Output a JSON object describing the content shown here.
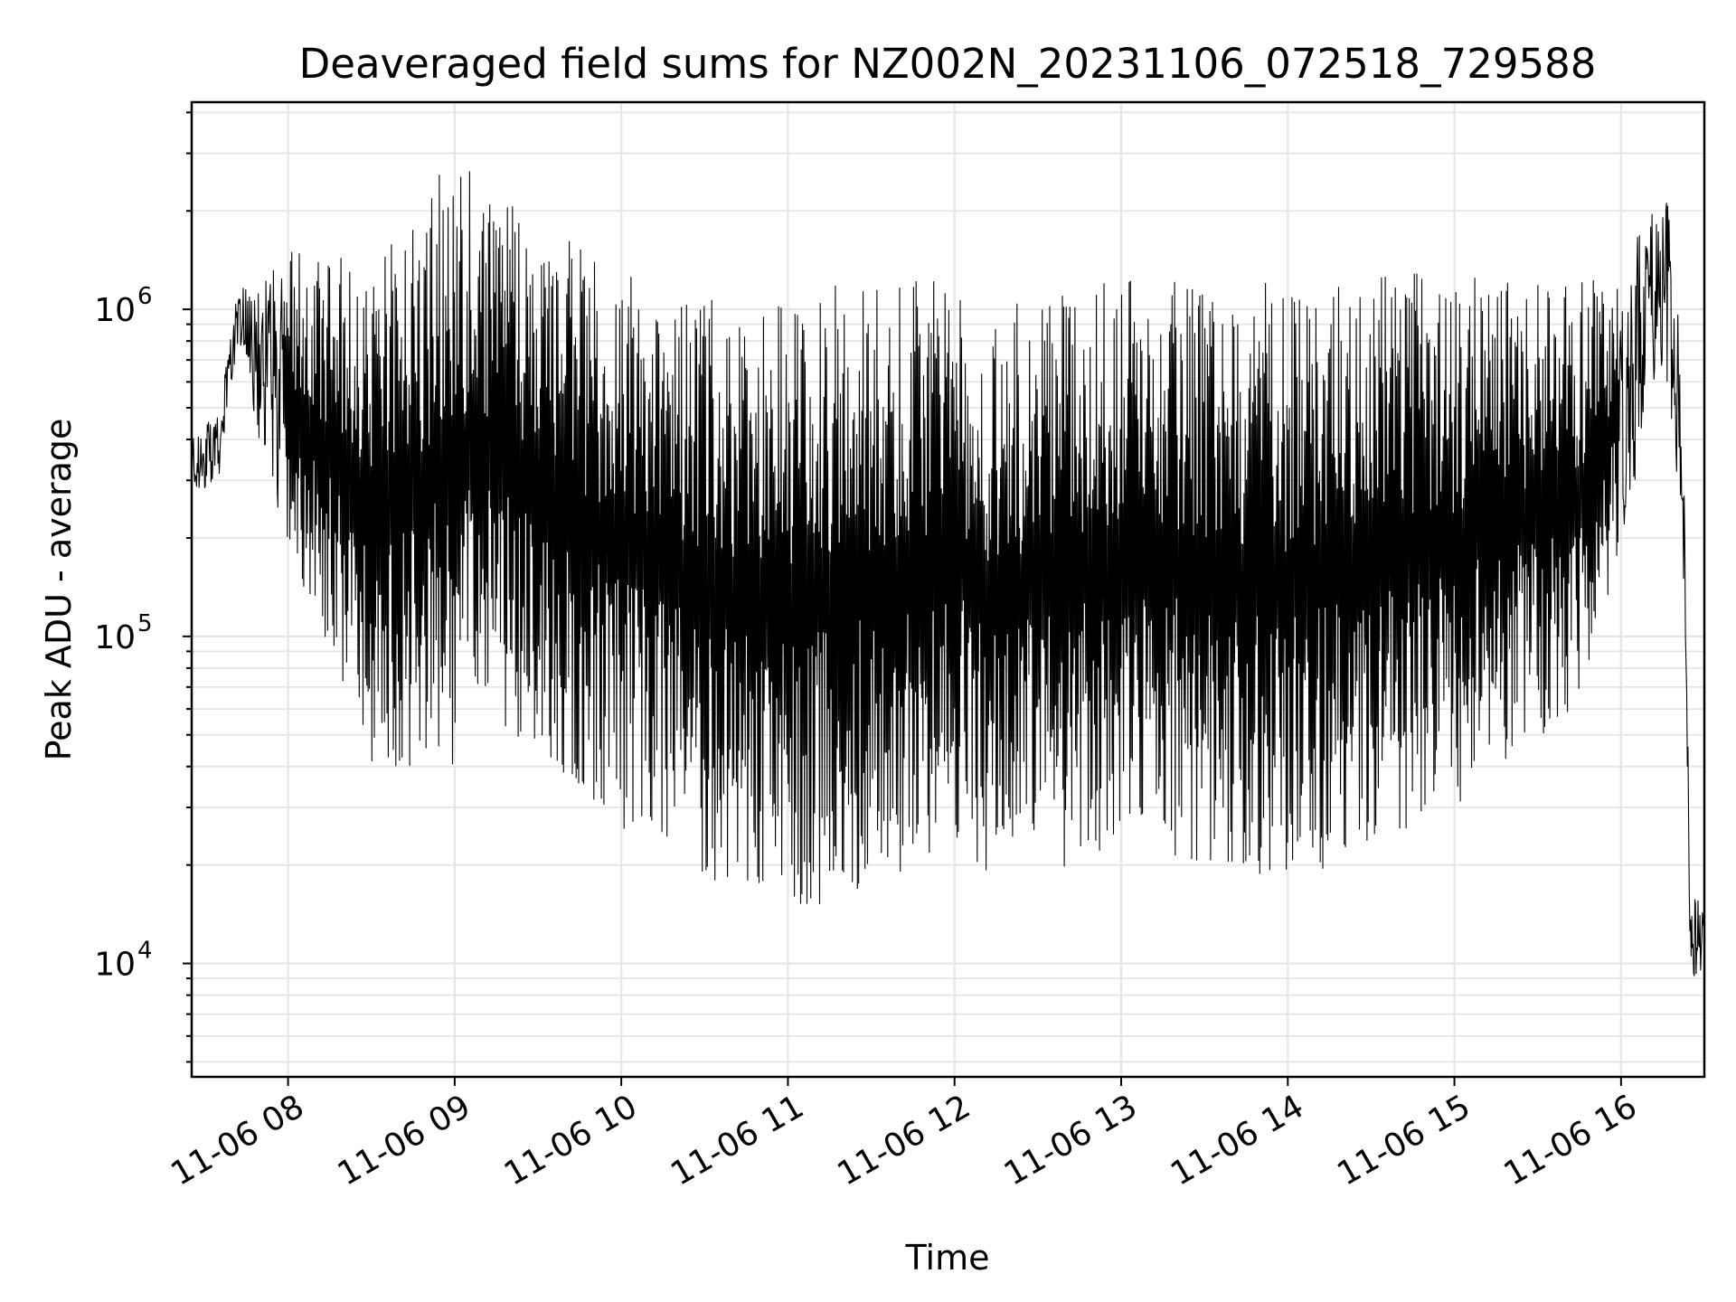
{
  "chart_data": {
    "type": "line",
    "title": "Deaveraged field sums for NZ002N_20231106_072518_729588",
    "xlabel": "Time",
    "ylabel": "Peak ADU - average",
    "yscale": "log",
    "grid": true,
    "line_color": "#000000",
    "grid_color": "#e5e5e5",
    "xlim": [
      "2023-11-06 07:25:18",
      "2023-11-06 16:30:00"
    ],
    "ylim": [
      4500,
      4300000
    ],
    "x_ticks": [
      "11-06 08",
      "11-06 09",
      "11-06 10",
      "11-06 11",
      "11-06 12",
      "11-06 13",
      "11-06 14",
      "11-06 15",
      "11-06 16"
    ],
    "y_ticks": [
      {
        "base": "10",
        "exp": "4",
        "value": 10000
      },
      {
        "base": "10",
        "exp": "5",
        "value": 100000
      },
      {
        "base": "10",
        "exp": "6",
        "value": 1000000
      }
    ],
    "series": [
      {
        "x": [
          "2023-11-06 07:25",
          "2023-11-06 07:35",
          "2023-11-06 07:42",
          "2023-11-06 07:48",
          "2023-11-06 08:00",
          "2023-11-06 08:30",
          "2023-11-06 09:00",
          "2023-11-06 09:10",
          "2023-11-06 10:00",
          "2023-11-06 10:50",
          "2023-11-06 11:10",
          "2023-11-06 12:00",
          "2023-11-06 12:15",
          "2023-11-06 13:00",
          "2023-11-06 13:40",
          "2023-11-06 14:00",
          "2023-11-06 15:00",
          "2023-11-06 15:45",
          "2023-11-06 16:00",
          "2023-11-06 16:10",
          "2023-11-06 16:17",
          "2023-11-06 16:22",
          "2023-11-06 16:25",
          "2023-11-06 16:30"
        ],
        "envelope_high": [
          420000,
          480000,
          1200000,
          1100000,
          1600000,
          1400000,
          3000000,
          2400000,
          1300000,
          1000000,
          1200000,
          1300000,
          1000000,
          1300000,
          1200000,
          1250000,
          1300000,
          1200000,
          1400000,
          2000000,
          2200000,
          700000,
          18000,
          14000
        ],
        "envelope_low": [
          260000,
          300000,
          800000,
          450000,
          180000,
          40000,
          40000,
          60000,
          26000,
          15000,
          15000,
          22000,
          17000,
          22000,
          20000,
          17000,
          30000,
          60000,
          180000,
          500000,
          600000,
          200000,
          9000,
          5500
        ]
      }
    ]
  }
}
